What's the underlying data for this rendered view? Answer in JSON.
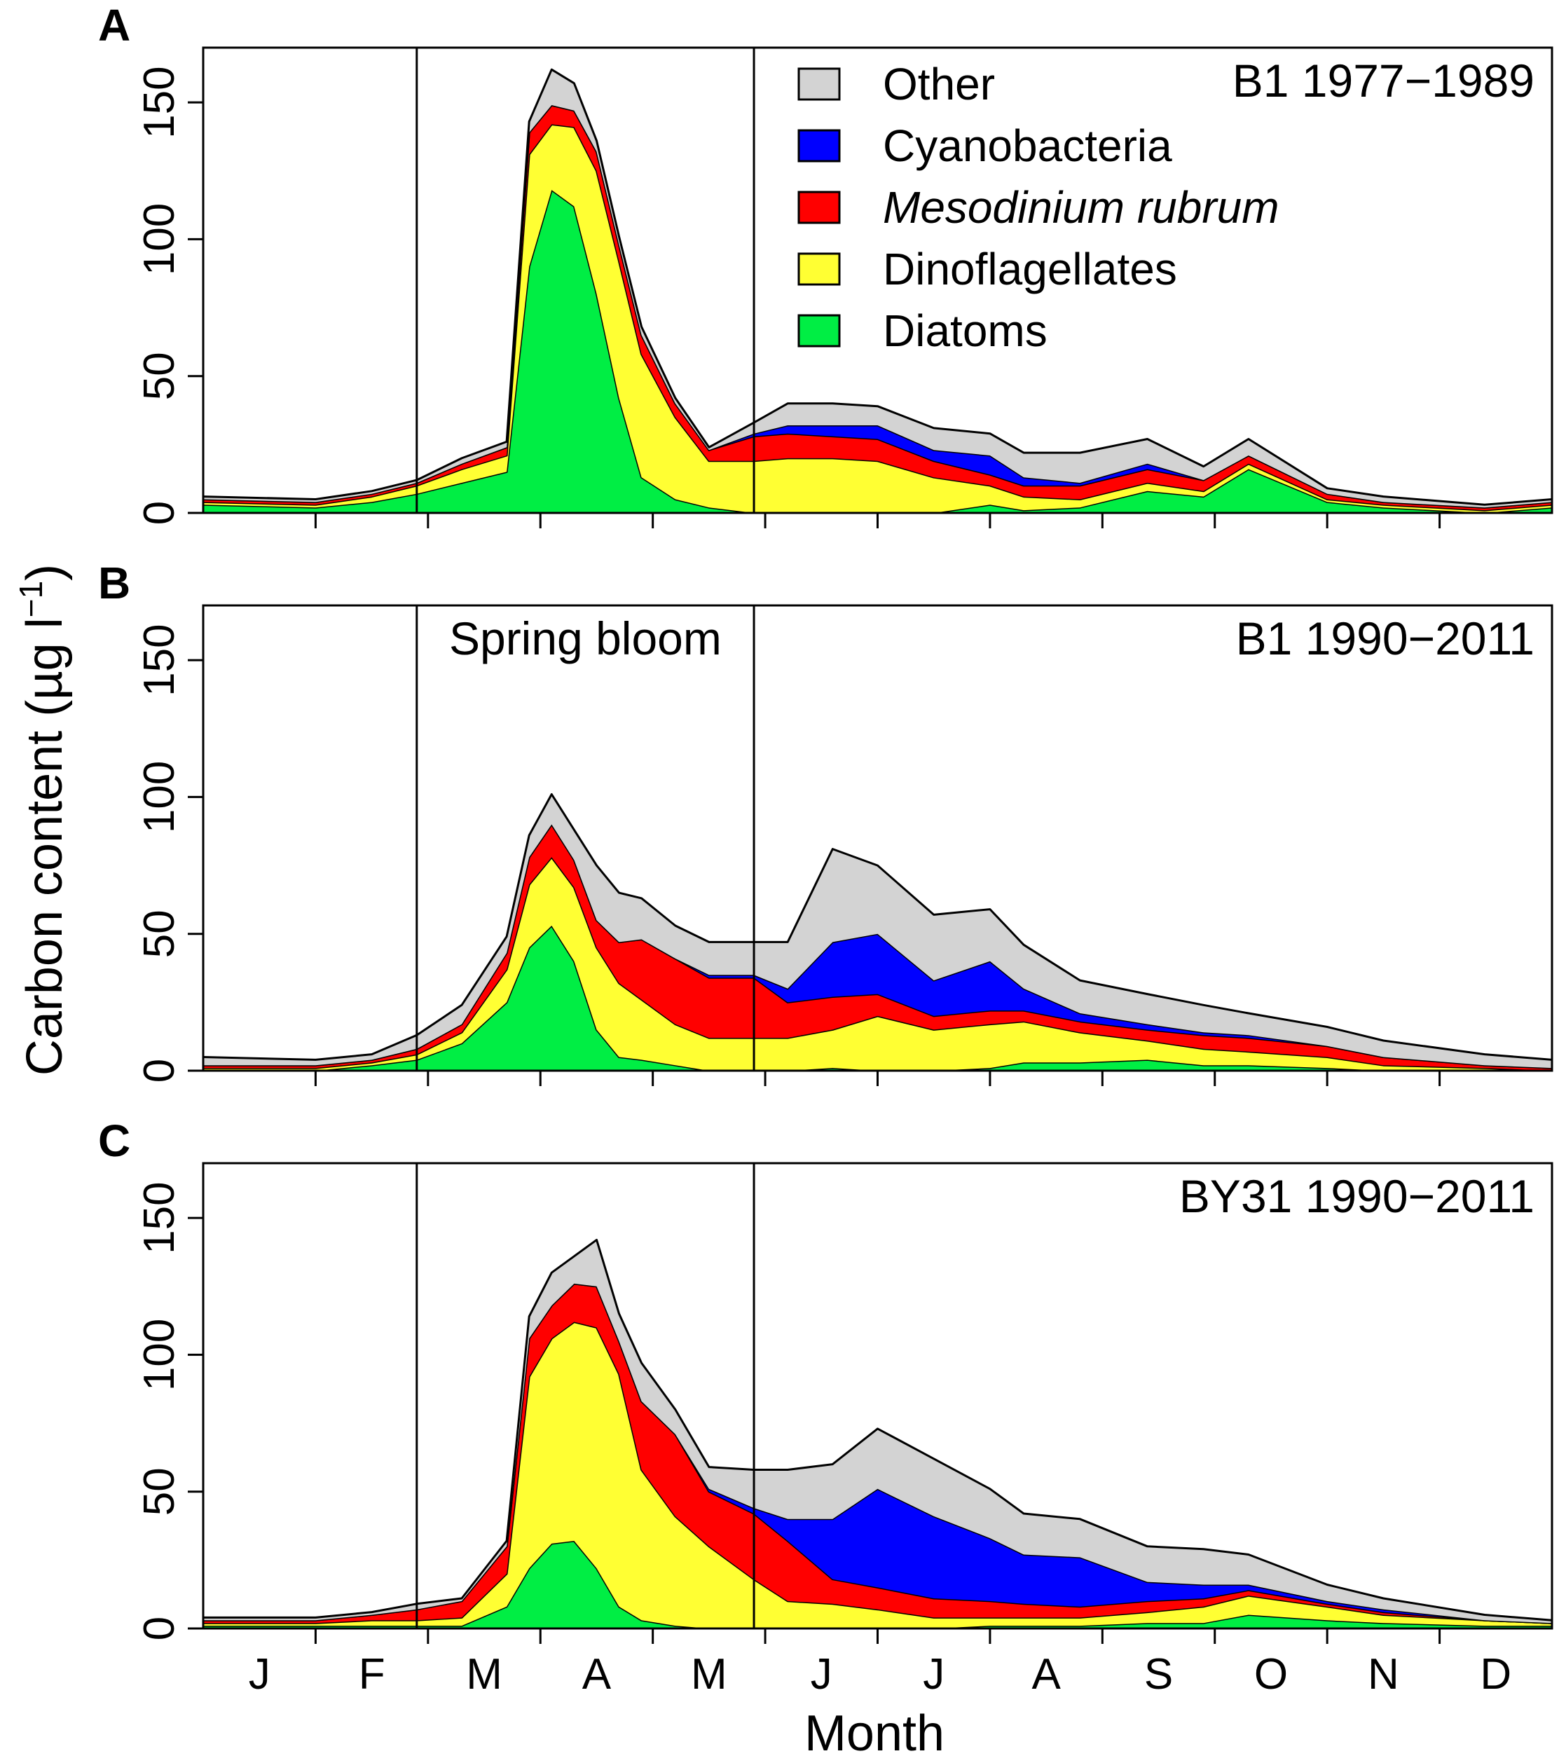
{
  "chart_data": {
    "type": "area",
    "stacked": true,
    "ylabel": "Carbon content  (µg l⁻¹)",
    "ylabel_parts": {
      "main": "Carbon content  (µg l",
      "exponent": "−1",
      "close": ")"
    },
    "xlabel": "Month",
    "x_tick_labels": [
      "J",
      "F",
      "M",
      "A",
      "M",
      "J",
      "J",
      "A",
      "S",
      "O",
      "N",
      "D"
    ],
    "ylim": [
      0,
      170
    ],
    "y_ticks": [
      0,
      50,
      100,
      150
    ],
    "x_domain_months": [
      0,
      12
    ],
    "spring_bloom_bounds_months": [
      1.9,
      4.9
    ],
    "spring_bloom_label": "Spring bloom",
    "legend": [
      {
        "name": "Other",
        "color": "#d3d3d3",
        "italic": false
      },
      {
        "name": "Cyanobacteria",
        "color": "#0000ff",
        "italic": false
      },
      {
        "name": "Mesodinium rubrum",
        "color": "#ff0000",
        "italic": true
      },
      {
        "name": "Dinoflagellates",
        "color": "#ffff33",
        "italic": false
      },
      {
        "name": "Diatoms",
        "color": "#00ee44",
        "italic": false
      }
    ],
    "stack_order": [
      "Diatoms",
      "Dinoflagellates",
      "Mesodinium rubrum",
      "Cyanobacteria",
      "Other"
    ],
    "panels": [
      {
        "letter": "A",
        "title": "B1 1977−1989",
        "show_bloom_label": false,
        "show_legend": true,
        "x": [
          0,
          1,
          1.5,
          1.9,
          2.3,
          2.7,
          2.9,
          3.1,
          3.3,
          3.5,
          3.7,
          3.9,
          4.2,
          4.5,
          4.9,
          5.2,
          5.6,
          6,
          6.5,
          7,
          7.3,
          7.8,
          8.4,
          8.9,
          9.3,
          10,
          10.5,
          11.4,
          12
        ],
        "series": [
          {
            "name": "Diatoms",
            "values": [
              3,
              2,
              4,
              7,
              11,
              15,
              90,
              118,
              112,
              80,
              42,
              13,
              5,
              2,
              0,
              0,
              0,
              0,
              0,
              3,
              1,
              2,
              8,
              6,
              16,
              4,
              2,
              0,
              2
            ]
          },
          {
            "name": "Dinoflagellates",
            "values": [
              1,
              1,
              2,
              3,
              5,
              6,
              41,
              24,
              29,
              45,
              50,
              45,
              30,
              17,
              19,
              20,
              20,
              19,
              13,
              7,
              5,
              3,
              3,
              2,
              2,
              1,
              1,
              1,
              1
            ]
          },
          {
            "name": "Mesodinium rubrum",
            "values": [
              1,
              1,
              1,
              1,
              2,
              3,
              8,
              7,
              6,
              7,
              6,
              7,
              5,
              4,
              9,
              9,
              8,
              8,
              6,
              4,
              4,
              5,
              5,
              4,
              3,
              2,
              1,
              1,
              1
            ]
          },
          {
            "name": "Cyanobacteria",
            "values": [
              0,
              0,
              0,
              0,
              0,
              0,
              0,
              0,
              0,
              0,
              0,
              0,
              0,
              0,
              1,
              3,
              4,
              5,
              4,
              7,
              3,
              1,
              2,
              0,
              0,
              0,
              0,
              0,
              0
            ]
          },
          {
            "name": "Other",
            "values": [
              1,
              1,
              1,
              1,
              2,
              2,
              4,
              13,
              10,
              4,
              3,
              3,
              2,
              1,
              4,
              8,
              8,
              7,
              8,
              8,
              9,
              11,
              9,
              5,
              6,
              2,
              2,
              1,
              1
            ]
          }
        ]
      },
      {
        "letter": "B",
        "title": "B1 1990−2011",
        "show_bloom_label": true,
        "show_legend": false,
        "x": [
          0,
          1,
          1.5,
          1.9,
          2.3,
          2.7,
          2.9,
          3.1,
          3.3,
          3.5,
          3.7,
          3.9,
          4.2,
          4.5,
          4.9,
          5.2,
          5.6,
          6,
          6.5,
          7,
          7.3,
          7.8,
          8.4,
          8.9,
          9.3,
          10,
          10.5,
          11.4,
          12
        ],
        "series": [
          {
            "name": "Diatoms",
            "values": [
              0,
              0,
              2,
              4,
              10,
              25,
              45,
              53,
              40,
              15,
              5,
              4,
              2,
              0,
              0,
              0,
              1,
              0,
              0,
              1,
              3,
              3,
              4,
              2,
              2,
              1,
              0,
              0,
              0
            ]
          },
          {
            "name": "Dinoflagellates",
            "values": [
              1,
              1,
              1,
              2,
              4,
              12,
              23,
              25,
              27,
              30,
              27,
              22,
              15,
              12,
              12,
              12,
              14,
              20,
              15,
              16,
              15,
              11,
              7,
              6,
              5,
              4,
              2,
              1,
              0
            ]
          },
          {
            "name": "Mesodinium rubrum",
            "values": [
              1,
              1,
              1,
              2,
              3,
              6,
              10,
              12,
              10,
              10,
              15,
              22,
              24,
              22,
              22,
              13,
              12,
              8,
              5,
              5,
              4,
              4,
              4,
              5,
              5,
              4,
              3,
              1,
              1
            ]
          },
          {
            "name": "Cyanobacteria",
            "values": [
              0,
              0,
              0,
              0,
              0,
              0,
              0,
              0,
              0,
              0,
              0,
              0,
              0,
              1,
              1,
              5,
              20,
              22,
              13,
              18,
              8,
              3,
              2,
              1,
              1,
              0,
              0,
              0,
              0
            ]
          },
          {
            "name": "Other",
            "values": [
              3,
              2,
              2,
              5,
              7,
              6,
              8,
              11,
              11,
              20,
              18,
              15,
              12,
              12,
              12,
              17,
              34,
              25,
              24,
              19,
              16,
              12,
              11,
              10,
              8,
              7,
              6,
              4,
              3
            ]
          }
        ]
      },
      {
        "letter": "C",
        "title": "BY31 1990−2011",
        "show_bloom_label": false,
        "show_legend": false,
        "x": [
          0,
          1,
          1.5,
          1.9,
          2.3,
          2.7,
          2.9,
          3.1,
          3.3,
          3.5,
          3.7,
          3.9,
          4.2,
          4.5,
          4.9,
          5.2,
          5.6,
          6,
          6.5,
          7,
          7.3,
          7.8,
          8.4,
          8.9,
          9.3,
          10,
          10.5,
          11.4,
          12
        ],
        "series": [
          {
            "name": "Diatoms",
            "values": [
              1,
              1,
              1,
              1,
              1,
              8,
              22,
              31,
              32,
              22,
              8,
              3,
              1,
              0,
              0,
              0,
              0,
              0,
              0,
              1,
              1,
              1,
              2,
              2,
              5,
              3,
              2,
              1,
              1
            ]
          },
          {
            "name": "Dinoflagellates",
            "values": [
              1,
              1,
              2,
              2,
              3,
              12,
              70,
              75,
              80,
              88,
              85,
              55,
              40,
              30,
              18,
              10,
              9,
              7,
              4,
              3,
              3,
              3,
              4,
              6,
              7,
              5,
              3,
              2,
              1
            ]
          },
          {
            "name": "Mesodinium rubrum",
            "values": [
              1,
              1,
              2,
              4,
              6,
              10,
              14,
              12,
              14,
              15,
              12,
              25,
              30,
              20,
              24,
              22,
              9,
              8,
              7,
              6,
              5,
              4,
              4,
              3,
              2,
              1,
              1,
              0,
              0
            ]
          },
          {
            "name": "Cyanobacteria",
            "values": [
              0,
              0,
              0,
              0,
              0,
              0,
              0,
              0,
              0,
              0,
              0,
              0,
              0,
              1,
              2,
              8,
              22,
              36,
              30,
              23,
              18,
              18,
              7,
              5,
              2,
              1,
              1,
              0,
              0
            ]
          },
          {
            "name": "Other",
            "values": [
              1,
              1,
              1,
              2,
              1,
              2,
              8,
              12,
              10,
              17,
              10,
              14,
              9,
              8,
              14,
              18,
              20,
              22,
              21,
              18,
              15,
              14,
              13,
              13,
              11,
              6,
              4,
              2,
              1
            ]
          }
        ]
      }
    ]
  }
}
